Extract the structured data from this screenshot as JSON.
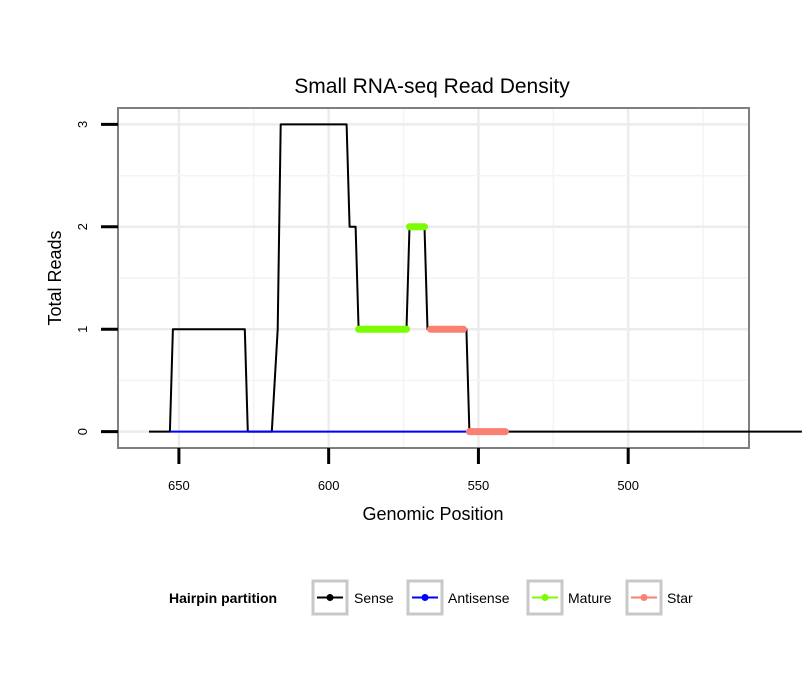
{
  "chart_data": {
    "type": "line",
    "title": "Small RNA-seq Read Density",
    "xlabel": "Genomic Position",
    "ylabel": "Total Reads",
    "xlim": [
      670,
      460
    ],
    "ylim": [
      -0.15,
      3.15
    ],
    "x_reversed": true,
    "x_ticks": [
      650,
      600,
      550,
      500
    ],
    "y_ticks": [
      0,
      1,
      2,
      3
    ],
    "grid": true,
    "legend": {
      "title": "Hairpin partition",
      "position": "bottom",
      "entries": [
        {
          "name": "Sense",
          "color": "#000000"
        },
        {
          "name": "Antisense",
          "color": "#0000ff"
        },
        {
          "name": "Mature",
          "color": "#7cfc00"
        },
        {
          "name": "Star",
          "color": "#fa8072"
        }
      ]
    },
    "series": [
      {
        "name": "Sense",
        "color": "#000000",
        "x": [
          660,
          653,
          652,
          628,
          627,
          619,
          617,
          616,
          594,
          593,
          591,
          590,
          574,
          573,
          568,
          567,
          555,
          554,
          553,
          442
        ],
        "y": [
          0,
          0,
          1,
          1,
          0,
          0,
          1,
          3,
          3,
          2,
          2,
          1,
          1,
          2,
          2,
          1,
          1,
          1,
          0,
          0
        ]
      },
      {
        "name": "Antisense",
        "color": "#0000ff",
        "x": [
          653,
          553
        ],
        "y": [
          0,
          0
        ]
      },
      {
        "name": "Mature",
        "color": "#7cfc00",
        "segments": [
          {
            "x": [
              590,
              574
            ],
            "y": [
              1,
              1
            ]
          },
          {
            "x": [
              573,
              568
            ],
            "y": [
              2,
              2
            ]
          }
        ]
      },
      {
        "name": "Star",
        "color": "#fa8072",
        "segments": [
          {
            "x": [
              566,
              555
            ],
            "y": [
              1,
              1
            ]
          },
          {
            "x": [
              553,
              541
            ],
            "y": [
              0,
              0
            ]
          }
        ]
      }
    ]
  }
}
